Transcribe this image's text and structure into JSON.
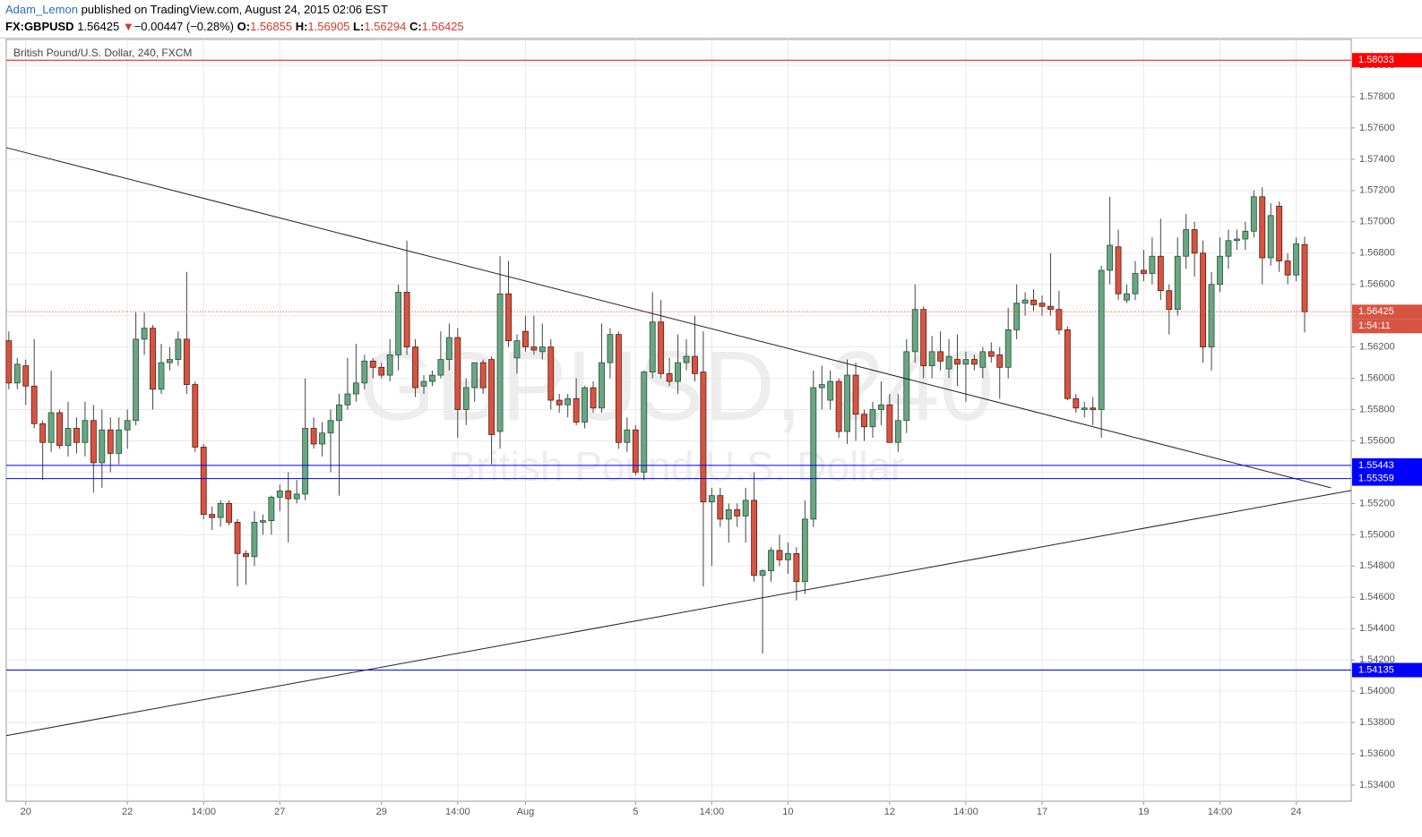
{
  "header": {
    "author": "Adam_Lemon",
    "published": "published on TradingView.com, August 24, 2015 02:06 EST",
    "symbol": "FX:GBPUSD",
    "price": "1.56425",
    "arrow": "▼",
    "change": "−0.00447 (−0.28%)",
    "o_label": "O:",
    "o": "1.56855",
    "h_label": "H:",
    "h": "1.56905",
    "l_label": "L:",
    "l": "1.56294",
    "c_label": "C:",
    "c": "1.56425"
  },
  "chart_data": {
    "type": "candlestick",
    "title": "British Pound/U.S. Dollar, 240, FXCM",
    "watermark": "GBPUSD, 240",
    "watermark_subtitle": "British Pound/U.S. Dollar",
    "up_color": "#6ba583",
    "down_color": "#d75442",
    "grid": true,
    "open": [
      1.5624,
      1.5597,
      1.5608,
      1.5595,
      1.5571,
      1.5559,
      1.5578,
      1.5557,
      1.5568,
      1.5559,
      1.5573,
      1.5546,
      1.5567,
      1.5552,
      1.5567,
      1.5573,
      1.5625,
      1.5632,
      1.5593,
      1.561,
      1.5612,
      1.5625,
      1.5596,
      1.5556,
      1.5513,
      1.5511,
      1.552,
      1.5508,
      1.5488,
      1.5486,
      1.5508,
      1.5509,
      1.5524,
      1.5528,
      1.5523,
      1.5526,
      1.5568,
      1.5558,
      1.5565,
      1.5573,
      1.5583,
      1.559,
      1.5597,
      1.5611,
      1.5607,
      1.5602,
      1.5615,
      1.5655,
      1.562,
      1.5595,
      1.5598,
      1.5602,
      1.5612,
      1.5626,
      1.558,
      1.5594,
      1.561,
      1.5612,
      1.5566,
      1.5654,
      1.5613,
      1.563,
      1.562,
      1.5617,
      1.562,
      1.5586,
      1.5583,
      1.5587,
      1.5572,
      1.5594,
      1.5581,
      1.561,
      1.5628,
      1.5559,
      1.5567,
      1.554,
      1.5604,
      1.5636,
      1.5603,
      1.5598,
      1.561,
      1.5614,
      1.5604,
      1.5521,
      1.5525,
      1.551,
      1.5516,
      1.5512,
      1.5522,
      1.5474,
      1.5477,
      1.549,
      1.5484,
      1.5488,
      1.547,
      1.551,
      1.5594,
      1.5586,
      1.5598,
      1.5566,
      1.5602,
      1.5577,
      1.5569,
      1.558,
      1.5583,
      1.5559,
      1.5573,
      1.5617,
      1.5644,
      1.5608,
      1.5617,
      1.5606,
      1.5612,
      1.5609,
      1.5612,
      1.5607,
      1.5617,
      1.5615,
      1.5607,
      1.5631,
      1.5648,
      1.565,
      1.5648,
      1.5646,
      1.5644,
      1.5631,
      1.5587,
      1.558,
      1.5581,
      1.558,
      1.5669,
      1.5684,
      1.565,
      1.5654,
      1.5669,
      1.5667,
      1.5678,
      1.5656,
      1.5644,
      1.5678,
      1.5695,
      1.568,
      1.562,
      1.566,
      1.5678,
      1.5688,
      1.5689,
      1.5694,
      1.5716,
      1.5677,
      1.571,
      1.5675,
      1.5666,
      1.56855
    ],
    "high": [
      1.563,
      1.5613,
      1.5612,
      1.5625,
      1.5573,
      1.5605,
      1.558,
      1.5585,
      1.5575,
      1.5585,
      1.5583,
      1.558,
      1.5575,
      1.5575,
      1.558,
      1.5642,
      1.5642,
      1.5634,
      1.5622,
      1.562,
      1.563,
      1.5668,
      1.5598,
      1.5558,
      1.5518,
      1.5522,
      1.5522,
      1.551,
      1.549,
      1.5515,
      1.5513,
      1.5525,
      1.5532,
      1.554,
      1.5535,
      1.56,
      1.5575,
      1.5572,
      1.558,
      1.559,
      1.5613,
      1.5622,
      1.5615,
      1.5613,
      1.561,
      1.5625,
      1.566,
      1.5688,
      1.5625,
      1.5602,
      1.5605,
      1.563,
      1.5635,
      1.5632,
      1.56,
      1.561,
      1.5612,
      1.5614,
      1.5678,
      1.5675,
      1.5628,
      1.564,
      1.564,
      1.5635,
      1.5625,
      1.559,
      1.559,
      1.56,
      1.5595,
      1.5598,
      1.5635,
      1.5632,
      1.563,
      1.5575,
      1.557,
      1.5605,
      1.5655,
      1.565,
      1.5613,
      1.5628,
      1.5625,
      1.564,
      1.563,
      1.553,
      1.553,
      1.552,
      1.552,
      1.553,
      1.554,
      1.5478,
      1.5492,
      1.55,
      1.5495,
      1.5492,
      1.5522,
      1.5605,
      1.5608,
      1.5605,
      1.56,
      1.5612,
      1.561,
      1.558,
      1.5585,
      1.5598,
      1.559,
      1.559,
      1.5625,
      1.566,
      1.5646,
      1.5627,
      1.563,
      1.5625,
      1.5628,
      1.5617,
      1.5615,
      1.562,
      1.5623,
      1.562,
      1.5645,
      1.566,
      1.5655,
      1.5657,
      1.5653,
      1.568,
      1.5656,
      1.5633,
      1.559,
      1.5585,
      1.5588,
      1.5672,
      1.5716,
      1.5695,
      1.566,
      1.5675,
      1.5682,
      1.569,
      1.5702,
      1.566,
      1.569,
      1.5705,
      1.57,
      1.5688,
      1.5668,
      1.569,
      1.5695,
      1.5695,
      1.57,
      1.572,
      1.5722,
      1.5712,
      1.5713,
      1.568,
      1.569,
      1.56905
    ],
    "low": [
      1.5593,
      1.5593,
      1.5583,
      1.5568,
      1.5535,
      1.5553,
      1.5555,
      1.555,
      1.5552,
      1.555,
      1.5527,
      1.553,
      1.554,
      1.5545,
      1.5555,
      1.557,
      1.5615,
      1.558,
      1.559,
      1.5605,
      1.5608,
      1.559,
      1.5553,
      1.551,
      1.5503,
      1.5505,
      1.5506,
      1.5467,
      1.5468,
      1.548,
      1.55,
      1.55,
      1.5515,
      1.5495,
      1.552,
      1.5522,
      1.5555,
      1.555,
      1.554,
      1.5525,
      1.558,
      1.5585,
      1.5593,
      1.56,
      1.56,
      1.5598,
      1.5605,
      1.5615,
      1.5588,
      1.559,
      1.5595,
      1.56,
      1.5605,
      1.5562,
      1.557,
      1.5585,
      1.559,
      1.5545,
      1.5555,
      1.562,
      1.5603,
      1.5617,
      1.5615,
      1.5612,
      1.558,
      1.5578,
      1.5575,
      1.557,
      1.5568,
      1.5578,
      1.5578,
      1.56,
      1.5555,
      1.5553,
      1.5538,
      1.5535,
      1.56,
      1.56,
      1.5595,
      1.559,
      1.5605,
      1.5598,
      1.5467,
      1.548,
      1.5505,
      1.5495,
      1.5505,
      1.5495,
      1.547,
      1.5424,
      1.547,
      1.548,
      1.5475,
      1.5458,
      1.5462,
      1.5505,
      1.558,
      1.558,
      1.5562,
      1.5558,
      1.556,
      1.556,
      1.5562,
      1.557,
      1.556,
      1.5553,
      1.5565,
      1.561,
      1.56,
      1.56,
      1.5605,
      1.56,
      1.5595,
      1.5585,
      1.5605,
      1.56,
      1.561,
      1.5587,
      1.56,
      1.5625,
      1.564,
      1.5643,
      1.564,
      1.564,
      1.5628,
      1.5586,
      1.5578,
      1.5575,
      1.557,
      1.5562,
      1.566,
      1.565,
      1.5648,
      1.565,
      1.5662,
      1.566,
      1.565,
      1.5628,
      1.564,
      1.567,
      1.5665,
      1.561,
      1.5605,
      1.5655,
      1.567,
      1.5682,
      1.5682,
      1.569,
      1.566,
      1.5672,
      1.5668,
      1.566,
      1.5662,
      1.56294
    ],
    "close": [
      1.5597,
      1.5609,
      1.5595,
      1.5571,
      1.5559,
      1.5578,
      1.5557,
      1.5568,
      1.5559,
      1.5573,
      1.5546,
      1.5567,
      1.5552,
      1.5567,
      1.5573,
      1.5625,
      1.5632,
      1.5593,
      1.561,
      1.5612,
      1.5625,
      1.5596,
      1.5556,
      1.5513,
      1.5511,
      1.552,
      1.5508,
      1.5488,
      1.5486,
      1.5508,
      1.5509,
      1.5524,
      1.5528,
      1.5523,
      1.5526,
      1.5568,
      1.5558,
      1.5565,
      1.5573,
      1.5583,
      1.559,
      1.5597,
      1.5611,
      1.5607,
      1.5602,
      1.5615,
      1.5655,
      1.562,
      1.5594,
      1.5598,
      1.5602,
      1.5612,
      1.5626,
      1.558,
      1.5594,
      1.561,
      1.5594,
      1.5564,
      1.5654,
      1.5624,
      1.5624,
      1.562,
      1.5618,
      1.562,
      1.5586,
      1.5583,
      1.5587,
      1.5572,
      1.5594,
      1.5581,
      1.561,
      1.5628,
      1.5559,
      1.5567,
      1.554,
      1.5604,
      1.5636,
      1.5603,
      1.5598,
      1.561,
      1.5614,
      1.5603,
      1.5521,
      1.5525,
      1.551,
      1.5516,
      1.5512,
      1.5522,
      1.5474,
      1.5477,
      1.549,
      1.5484,
      1.5488,
      1.547,
      1.551,
      1.5594,
      1.5596,
      1.5598,
      1.5566,
      1.5602,
      1.5577,
      1.5569,
      1.558,
      1.5583,
      1.5559,
      1.5573,
      1.5617,
      1.5644,
      1.5608,
      1.5617,
      1.5611,
      1.5614,
      1.5609,
      1.5612,
      1.5609,
      1.5617,
      1.5614,
      1.5607,
      1.5631,
      1.5648,
      1.565,
      1.5647,
      1.5646,
      1.5644,
      1.5631,
      1.5587,
      1.5581,
      1.5581,
      1.558,
      1.5669,
      1.5685,
      1.5654,
      1.5654,
      1.5667,
      1.5667,
      1.5678,
      1.5656,
      1.5644,
      1.5678,
      1.5695,
      1.568,
      1.562,
      1.566,
      1.5678,
      1.5688,
      1.5689,
      1.5694,
      1.5716,
      1.5677,
      1.5704,
      1.5675,
      1.5666,
      1.5686,
      1.56425
    ],
    "xlim": [
      -0.3,
      158.5
    ],
    "xticks": [
      {
        "value": 2,
        "label": "20"
      },
      {
        "value": 14,
        "label": "22"
      },
      {
        "value": 23,
        "label": "14:00"
      },
      {
        "value": 32,
        "label": "27"
      },
      {
        "value": 44,
        "label": "29"
      },
      {
        "value": 53,
        "label": "14:00"
      },
      {
        "value": 61,
        "label": "Aug"
      },
      {
        "value": 74,
        "label": "5"
      },
      {
        "value": 83,
        "label": "14:00"
      },
      {
        "value": 92,
        "label": "10"
      },
      {
        "value": 104,
        "label": "12"
      },
      {
        "value": 113,
        "label": "14:00"
      },
      {
        "value": 122,
        "label": "17"
      },
      {
        "value": 134,
        "label": "19"
      },
      {
        "value": 143,
        "label": "14:00"
      },
      {
        "value": 152,
        "label": "24"
      }
    ],
    "ylim": [
      1.53297,
      1.58166
    ],
    "yticks": [
      {
        "value": 1.534,
        "label": "1.53400"
      },
      {
        "value": 1.536,
        "label": "1.53600"
      },
      {
        "value": 1.538,
        "label": "1.53800"
      },
      {
        "value": 1.54,
        "label": "1.54000"
      },
      {
        "value": 1.542,
        "label": "1.54200"
      },
      {
        "value": 1.544,
        "label": "1.54400"
      },
      {
        "value": 1.546,
        "label": "1.54600"
      },
      {
        "value": 1.548,
        "label": "1.54800"
      },
      {
        "value": 1.55,
        "label": "1.55000"
      },
      {
        "value": 1.552,
        "label": "1.55200"
      },
      {
        "value": 1.554,
        "label": "1.55400"
      },
      {
        "value": 1.556,
        "label": "1.55600"
      },
      {
        "value": 1.558,
        "label": "1.55800"
      },
      {
        "value": 1.56,
        "label": "1.56000"
      },
      {
        "value": 1.562,
        "label": "1.56200"
      },
      {
        "value": 1.564,
        "label": "1.56400"
      },
      {
        "value": 1.566,
        "label": "1.56600"
      },
      {
        "value": 1.568,
        "label": "1.56800"
      },
      {
        "value": 1.57,
        "label": "1.57000"
      },
      {
        "value": 1.572,
        "label": "1.57200"
      },
      {
        "value": 1.574,
        "label": "1.57400"
      },
      {
        "value": 1.576,
        "label": "1.57600"
      },
      {
        "value": 1.578,
        "label": "1.57800"
      },
      {
        "value": 1.58,
        "label": "1.58000"
      }
    ],
    "hlines": [
      {
        "value": 1.58033,
        "color": "#ff0000"
      },
      {
        "value": 1.55443,
        "color": "#0000ff"
      },
      {
        "value": 1.55359,
        "color": "#0000ff"
      },
      {
        "value": 1.54135,
        "color": "#0000ff"
      }
    ],
    "last_price": 1.56425,
    "last_color": "#d75442",
    "countdown": "1:54:11",
    "trendlines": [
      {
        "x": [
          -0.3,
          156.1
        ],
        "y": [
          1.57474,
          1.553
        ]
      },
      {
        "x": [
          -0.3,
          158.5
        ],
        "y": [
          1.53716,
          1.55283
        ]
      }
    ]
  }
}
